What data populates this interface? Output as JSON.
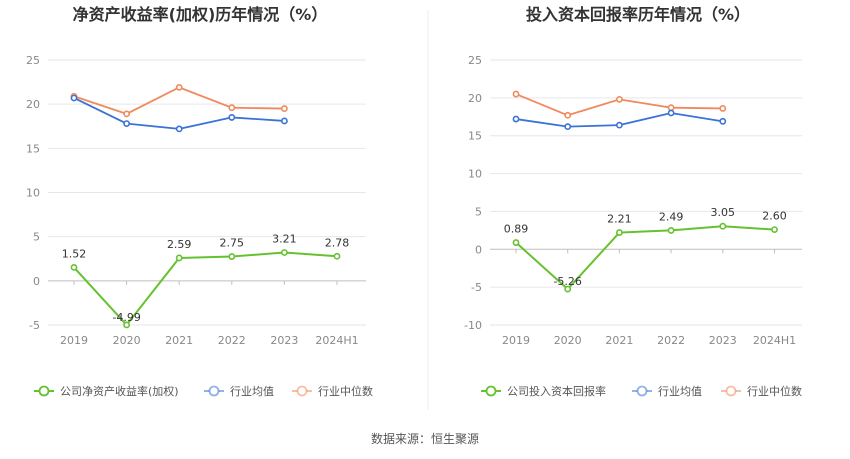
{
  "source_text": "数据来源：恒生聚源",
  "colors": {
    "company": "#66c12f",
    "industry_avg": "#3a72d6",
    "industry_median": "#f08a5d",
    "grid": "#e6e6ee",
    "axis": "#bfbfbf"
  },
  "chart_data": [
    {
      "type": "line",
      "title": "净资产收益率(加权)历年情况（%）",
      "categories": [
        "2019",
        "2020",
        "2021",
        "2022",
        "2023",
        "2024H1"
      ],
      "ylim": [
        -5,
        25
      ],
      "yticks": [
        -5,
        0,
        5,
        10,
        15,
        20,
        25
      ],
      "series": [
        {
          "name": "公司净资产收益率(加权)",
          "key": "company",
          "values": [
            1.52,
            -4.99,
            2.59,
            2.75,
            3.21,
            2.78
          ],
          "labels": [
            "1.52",
            "-4.99",
            "2.59",
            "2.75",
            "3.21",
            "2.78"
          ]
        },
        {
          "name": "行业均值",
          "key": "industry_avg",
          "values": [
            20.7,
            17.8,
            17.2,
            18.5,
            18.1,
            null
          ]
        },
        {
          "name": "行业中位数",
          "key": "industry_median",
          "values": [
            20.9,
            18.9,
            21.9,
            19.6,
            19.5,
            null
          ]
        }
      ]
    },
    {
      "type": "line",
      "title": "投入资本回报率历年情况（%）",
      "categories": [
        "2019",
        "2020",
        "2021",
        "2022",
        "2023",
        "2024H1"
      ],
      "ylim": [
        -10,
        25
      ],
      "yticks": [
        -10,
        -5,
        0,
        5,
        10,
        15,
        20,
        25
      ],
      "series": [
        {
          "name": "公司投入资本回报率",
          "key": "company",
          "values": [
            0.89,
            -5.26,
            2.21,
            2.49,
            3.05,
            2.6
          ],
          "labels": [
            "0.89",
            "-5.26",
            "2.21",
            "2.49",
            "3.05",
            "2.60"
          ]
        },
        {
          "name": "行业均值",
          "key": "industry_avg",
          "values": [
            17.2,
            16.2,
            16.4,
            18.0,
            16.9,
            null
          ]
        },
        {
          "name": "行业中位数",
          "key": "industry_median",
          "values": [
            20.5,
            17.7,
            19.8,
            18.7,
            18.6,
            null
          ]
        }
      ]
    }
  ]
}
